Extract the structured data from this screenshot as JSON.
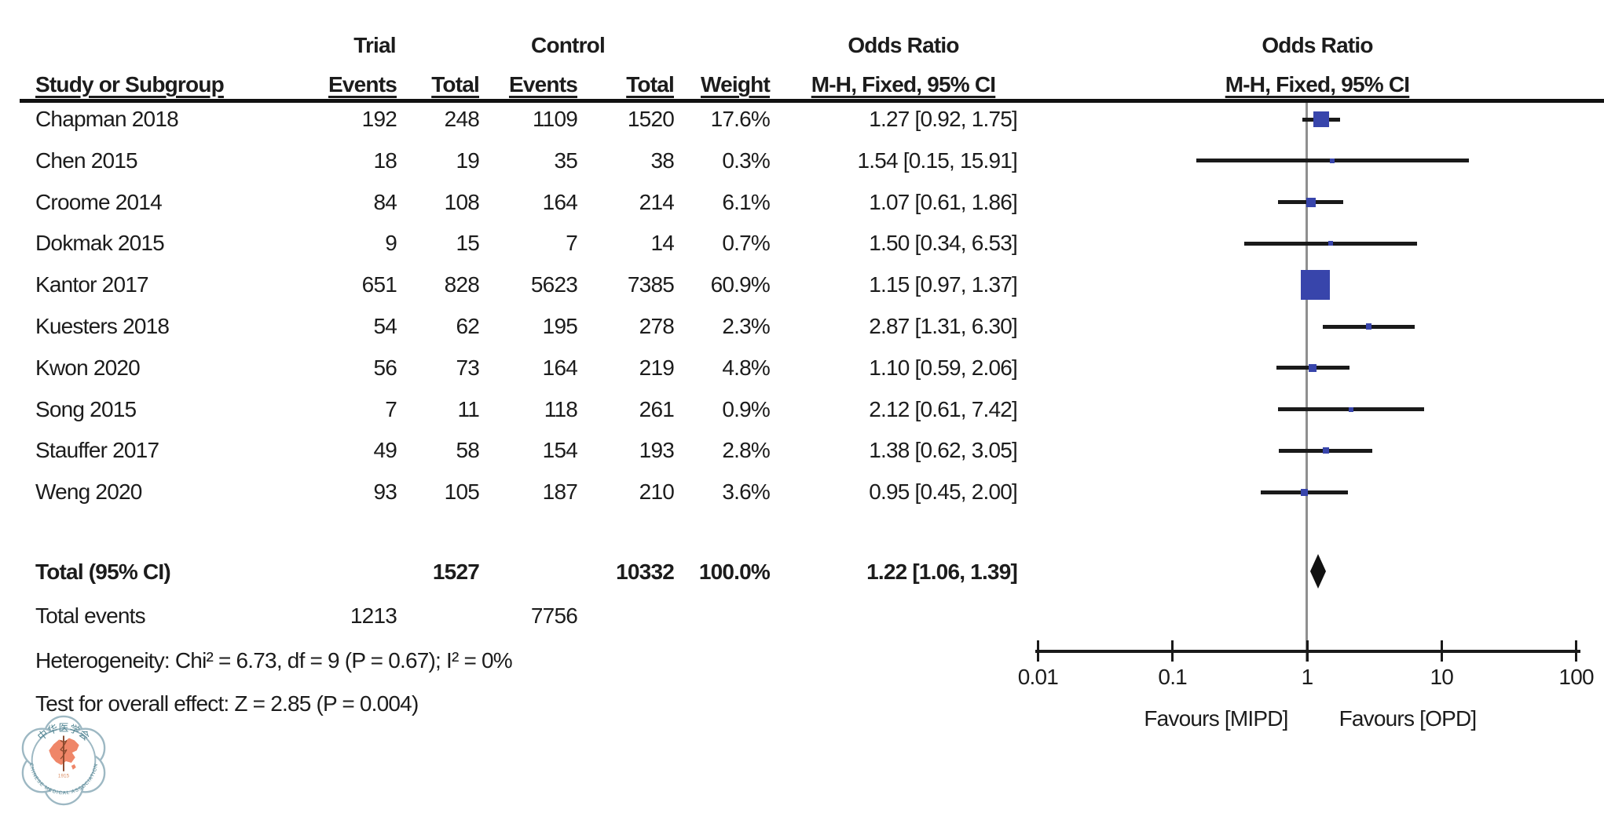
{
  "figure": {
    "header": {
      "trial_group": "Trial",
      "control_group": "Control",
      "odds_ratio_text_col": "Odds Ratio",
      "odds_ratio_plot_col": "Odds Ratio",
      "study": "Study or Subgroup",
      "events_trial": "Events",
      "total_trial": "Total",
      "events_control": "Events",
      "total_control": "Total",
      "weight": "Weight",
      "mh_fixed_text": "M-H, Fixed, 95% CI",
      "mh_fixed_plot": "M-H, Fixed, 95% CI"
    }
  },
  "chart_data": {
    "type": "forest",
    "effect_measure": "Odds Ratio (M-H, Fixed, 95% CI)",
    "x_axis": {
      "scale": "log",
      "tick_values": [
        0.01,
        0.1,
        1,
        10,
        100
      ],
      "tick_labels": [
        "0.01",
        "0.1",
        "1",
        "10",
        "100"
      ],
      "favours_left": "Favours [MIPD]",
      "favours_right": "Favours [OPD]"
    },
    "studies": [
      {
        "name": "Chapman 2018",
        "trial_events": "192",
        "trial_total": "248",
        "control_events": "1109",
        "control_total": "1520",
        "weight_label": "17.6%",
        "weight_pct": 17.6,
        "or": 1.27,
        "ci_low": 0.92,
        "ci_high": 1.75,
        "or_label": "1.27 [0.92, 1.75]"
      },
      {
        "name": "Chen 2015",
        "trial_events": "18",
        "trial_total": "19",
        "control_events": "35",
        "control_total": "38",
        "weight_label": "0.3%",
        "weight_pct": 0.3,
        "or": 1.54,
        "ci_low": 0.15,
        "ci_high": 15.91,
        "or_label": "1.54 [0.15, 15.91]"
      },
      {
        "name": "Croome 2014",
        "trial_events": "84",
        "trial_total": "108",
        "control_events": "164",
        "control_total": "214",
        "weight_label": "6.1%",
        "weight_pct": 6.1,
        "or": 1.07,
        "ci_low": 0.61,
        "ci_high": 1.86,
        "or_label": "1.07 [0.61, 1.86]"
      },
      {
        "name": "Dokmak 2015",
        "trial_events": "9",
        "trial_total": "15",
        "control_events": "7",
        "control_total": "14",
        "weight_label": "0.7%",
        "weight_pct": 0.7,
        "or": 1.5,
        "ci_low": 0.34,
        "ci_high": 6.53,
        "or_label": "1.50 [0.34, 6.53]"
      },
      {
        "name": "Kantor 2017",
        "trial_events": "651",
        "trial_total": "828",
        "control_events": "5623",
        "control_total": "7385",
        "weight_label": "60.9%",
        "weight_pct": 60.9,
        "or": 1.15,
        "ci_low": 0.97,
        "ci_high": 1.37,
        "or_label": "1.15 [0.97, 1.37]"
      },
      {
        "name": "Kuesters 2018",
        "trial_events": "54",
        "trial_total": "62",
        "control_events": "195",
        "control_total": "278",
        "weight_label": "2.3%",
        "weight_pct": 2.3,
        "or": 2.87,
        "ci_low": 1.31,
        "ci_high": 6.3,
        "or_label": "2.87 [1.31, 6.30]"
      },
      {
        "name": "Kwon 2020",
        "trial_events": "56",
        "trial_total": "73",
        "control_events": "164",
        "control_total": "219",
        "weight_label": "4.8%",
        "weight_pct": 4.8,
        "or": 1.1,
        "ci_low": 0.59,
        "ci_high": 2.06,
        "or_label": "1.10 [0.59, 2.06]"
      },
      {
        "name": "Song 2015",
        "trial_events": "7",
        "trial_total": "11",
        "control_events": "118",
        "control_total": "261",
        "weight_label": "0.9%",
        "weight_pct": 0.9,
        "or": 2.12,
        "ci_low": 0.61,
        "ci_high": 7.42,
        "or_label": "2.12 [0.61, 7.42]"
      },
      {
        "name": "Stauffer 2017",
        "trial_events": "49",
        "trial_total": "58",
        "control_events": "154",
        "control_total": "193",
        "weight_label": "2.8%",
        "weight_pct": 2.8,
        "or": 1.38,
        "ci_low": 0.62,
        "ci_high": 3.05,
        "or_label": "1.38 [0.62, 3.05]"
      },
      {
        "name": "Weng 2020",
        "trial_events": "93",
        "trial_total": "105",
        "control_events": "187",
        "control_total": "210",
        "weight_label": "3.6%",
        "weight_pct": 3.6,
        "or": 0.95,
        "ci_low": 0.45,
        "ci_high": 2.0,
        "or_label": "0.95 [0.45, 2.00]"
      }
    ],
    "total": {
      "label": "Total (95% CI)",
      "trial_total": "1527",
      "control_total": "10332",
      "weight_label": "100.0%",
      "or": 1.22,
      "ci_low": 1.06,
      "ci_high": 1.39,
      "or_label": "1.22 [1.06, 1.39]"
    },
    "total_events": {
      "label": "Total events",
      "trial": "1213",
      "control": "7756"
    },
    "heterogeneity": "Heterogeneity: Chi² = 6.73, df = 9 (P = 0.67); I² = 0%",
    "overall_effect": "Test for overall effect: Z = 2.85 (P = 0.004)"
  },
  "colors": {
    "marker": "#3845ab",
    "ci_line": "#1a1a1a",
    "center_line": "#8f8f8f",
    "axis": "#1a1a1a",
    "logo_salmon": "#ef8668",
    "logo_blue": "#9db8c3",
    "logo_text": "#4f8391"
  },
  "logo": {
    "ring_text_top": "中华医学会",
    "ring_text_bottom": "CHINESE MEDICAL ASSOCIATION",
    "year": "1915"
  }
}
